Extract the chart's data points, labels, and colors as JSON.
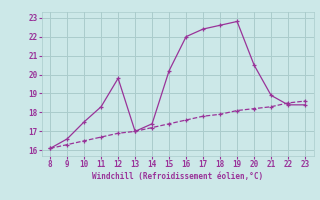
{
  "x_hours": [
    8,
    9,
    10,
    11,
    12,
    13,
    14,
    15,
    16,
    17,
    18,
    19,
    20,
    21,
    22,
    23
  ],
  "y_main": [
    16.1,
    16.6,
    17.5,
    18.3,
    19.8,
    17.0,
    17.4,
    20.2,
    22.0,
    22.4,
    22.6,
    22.8,
    20.5,
    18.9,
    18.4,
    18.4
  ],
  "y_trend": [
    16.1,
    16.3,
    16.5,
    16.7,
    16.9,
    17.0,
    17.2,
    17.4,
    17.6,
    17.8,
    17.9,
    18.1,
    18.2,
    18.3,
    18.5,
    18.6
  ],
  "line_color": "#993399",
  "bg_color": "#cce8e8",
  "grid_color": "#aacccc",
  "xlabel": "Windchill (Refroidissement éolien,°C)",
  "xlim": [
    7.5,
    23.5
  ],
  "ylim": [
    15.7,
    23.3
  ],
  "xticks": [
    8,
    9,
    10,
    11,
    12,
    13,
    14,
    15,
    16,
    17,
    18,
    19,
    20,
    21,
    22,
    23
  ],
  "yticks": [
    16,
    17,
    18,
    19,
    20,
    21,
    22,
    23
  ]
}
